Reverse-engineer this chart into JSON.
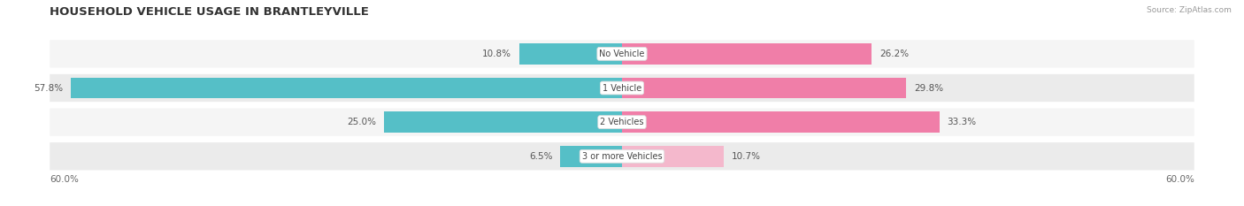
{
  "title": "HOUSEHOLD VEHICLE USAGE IN BRANTLEYVILLE",
  "source": "Source: ZipAtlas.com",
  "categories": [
    "No Vehicle",
    "1 Vehicle",
    "2 Vehicles",
    "3 or more Vehicles"
  ],
  "owner_values": [
    10.8,
    57.8,
    25.0,
    6.5
  ],
  "renter_values": [
    26.2,
    29.8,
    33.3,
    10.7
  ],
  "owner_color": "#55BFC7",
  "renter_color": "#F07EA8",
  "renter_color_3plus": "#F4B8CC",
  "max_val": 60.0,
  "title_fontsize": 9.5,
  "fig_width": 14.06,
  "fig_height": 2.33,
  "background_color": "#FFFFFF",
  "row_bg_even": "#F5F5F5",
  "row_bg_odd": "#EBEBEB"
}
